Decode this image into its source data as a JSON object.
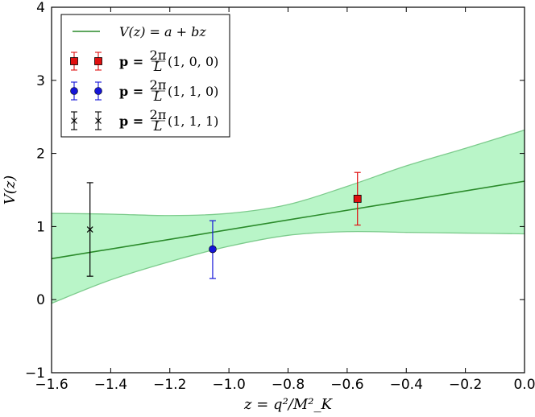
{
  "chart_data": {
    "type": "line",
    "title": "",
    "xlabel": "z = q²/M²_K",
    "ylabel": "V(z)",
    "xlim": [
      -1.6,
      0.0
    ],
    "ylim": [
      -1,
      4
    ],
    "x_ticks": [
      "−1.6",
      "−1.4",
      "−1.2",
      "−1.0",
      "−0.8",
      "−0.6",
      "−0.4",
      "−0.2",
      "0.0"
    ],
    "x_tick_values": [
      -1.6,
      -1.4,
      -1.2,
      -1.0,
      -0.8,
      -0.6,
      -0.4,
      -0.2,
      0.0
    ],
    "y_ticks": [
      "−1",
      "0",
      "1",
      "2",
      "3",
      "4"
    ],
    "y_tick_values": [
      -1,
      0,
      1,
      2,
      3,
      4
    ],
    "grid": false,
    "legend_position": "top-left",
    "colors": {
      "fit": "#2a8a2a",
      "band_fill": "#b9f5c8",
      "band_edge": "#7ccb8c",
      "red": "#e01010",
      "blue": "#1515d8",
      "black": "#000000"
    },
    "fit_line": {
      "label": "V(z) = a + bz",
      "x": [
        -1.6,
        0.0
      ],
      "y": [
        0.56,
        1.62
      ]
    },
    "error_band": {
      "x": [
        -1.6,
        -1.4,
        -1.2,
        -1.0,
        -0.8,
        -0.6,
        -0.4,
        -0.2,
        0.0
      ],
      "upper": [
        1.18,
        1.17,
        1.15,
        1.18,
        1.3,
        1.55,
        1.83,
        2.07,
        2.32
      ],
      "lower": [
        -0.05,
        0.27,
        0.52,
        0.73,
        0.88,
        0.93,
        0.92,
        0.91,
        0.9
      ]
    },
    "series": [
      {
        "name": "p = 2π/L (1,0,0)",
        "label_main": "p = ",
        "label_frac_num": "2π",
        "label_frac_den": "L",
        "label_tail": "(1, 0, 0)",
        "marker": "square",
        "color": "#e01010",
        "x": -0.565,
        "y": 1.38,
        "err_low": 1.02,
        "err_high": 1.74
      },
      {
        "name": "p = 2π/L (1,1,0)",
        "label_main": "p = ",
        "label_frac_num": "2π",
        "label_frac_den": "L",
        "label_tail": "(1, 1, 0)",
        "marker": "circle",
        "color": "#1515d8",
        "x": -1.055,
        "y": 0.69,
        "err_low": 0.29,
        "err_high": 1.08
      },
      {
        "name": "p = 2π/L (1,1,1)",
        "label_main": "p = ",
        "label_frac_num": "2π",
        "label_frac_den": "L",
        "label_tail": "(1, 1, 1)",
        "marker": "x",
        "color": "#000000",
        "x": -1.47,
        "y": 0.96,
        "err_low": 0.32,
        "err_high": 1.6
      }
    ]
  }
}
